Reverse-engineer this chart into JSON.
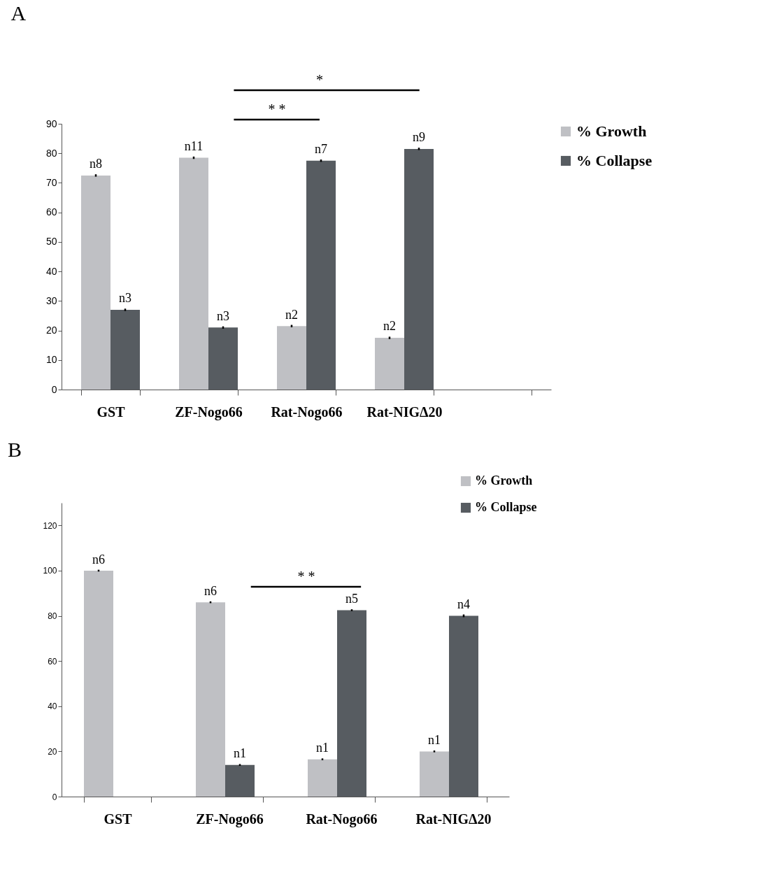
{
  "chart_data": [
    {
      "type": "bar",
      "title": "A",
      "categories": [
        "GST",
        "ZF-Nogo66",
        "Rat-Nogo66",
        "Rat-NIGΔ20",
        null
      ],
      "ylim": [
        0,
        90
      ],
      "yticks": [
        0,
        10,
        20,
        30,
        40,
        50,
        60,
        70,
        80,
        90
      ],
      "grid": false,
      "legend": "right",
      "series": [
        {
          "name": "% Growth",
          "color": "#bfc0c4",
          "values": [
            72.5,
            78.5,
            21.5,
            17.5,
            null
          ],
          "errors": [
            0.4,
            0.4,
            0.4,
            0.4,
            null
          ],
          "value_labels": [
            "n8",
            "n11",
            "n2",
            "n2",
            null
          ]
        },
        {
          "name": "% Collapse",
          "color": "#575c61",
          "values": [
            27,
            21,
            77.5,
            81.5,
            null
          ],
          "errors": [
            0.4,
            0.4,
            0.4,
            0.4,
            null
          ],
          "value_labels": [
            "n3",
            "n3",
            "n7",
            "n9",
            null
          ]
        }
      ],
      "annotations": [
        "*",
        "* *"
      ]
    },
    {
      "type": "bar",
      "title": "B",
      "categories": [
        "GST",
        "ZF-Nogo66",
        "Rat-Nogo66",
        "Rat-NIGΔ20"
      ],
      "ylim": [
        0,
        130
      ],
      "yticks": [
        0,
        20,
        40,
        60,
        80,
        100,
        120
      ],
      "grid": false,
      "legend": "top right",
      "series": [
        {
          "name": "% Growth",
          "color": "#bfc0c4",
          "values": [
            100,
            86,
            16.5,
            20
          ],
          "errors": [
            0.4,
            0.4,
            0.4,
            0.4
          ],
          "value_labels": [
            "n6",
            "n6",
            "n1",
            "n1"
          ]
        },
        {
          "name": "% Collapse",
          "color": "#575c61",
          "values": [
            0,
            14,
            82.5,
            80
          ],
          "errors": [
            null,
            0.4,
            0.4,
            0.6
          ],
          "value_labels": [
            null,
            "n1",
            "n5",
            "n4"
          ]
        }
      ],
      "annotations": [
        "* *"
      ]
    }
  ]
}
